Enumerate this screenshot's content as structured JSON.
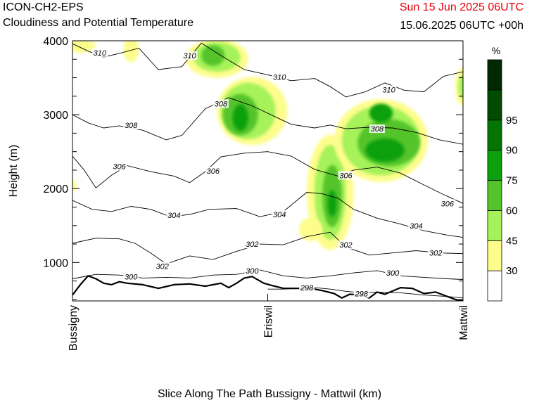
{
  "header": {
    "model": "ICON-CH2-EPS",
    "subtitle": "Cloudiness and Potential Temperature",
    "run_time": "Sun 15 Jun 2025 06UTC",
    "valid_time": "15.06.2025 06UTC +00h"
  },
  "colors": {
    "run_time": "#e8000b",
    "cloud_levels": [
      "#ffffff",
      "#fdfd8c",
      "#a6f25a",
      "#54c42b",
      "#0da00d",
      "#037503",
      "#024c02",
      "#022902"
    ]
  },
  "chart_data": {
    "type": "area",
    "title": "Cloudiness and Potential Temperature",
    "xlabel": "Slice Along The Path Bussigny - Mattwil (km)",
    "ylabel": "Height (m)",
    "x_ticks": [
      "Bussigny",
      "Eriswil",
      "Mattwil"
    ],
    "ylim": [
      480,
      4000
    ],
    "y_ticks": [
      1000,
      2000,
      3000,
      4000
    ],
    "legend": {
      "unit": "%",
      "position": "right",
      "levels": [
        30,
        45,
        60,
        75,
        90,
        95
      ]
    },
    "contour_labels": [
      {
        "label": "310",
        "x": 0.07,
        "y": 3840
      },
      {
        "label": "310",
        "x": 0.3,
        "y": 3800
      },
      {
        "label": "310",
        "x": 0.53,
        "y": 3510
      },
      {
        "label": "310",
        "x": 0.81,
        "y": 3340
      },
      {
        "label": "308",
        "x": 0.38,
        "y": 3150
      },
      {
        "label": "308",
        "x": 0.15,
        "y": 2860
      },
      {
        "label": "308",
        "x": 0.78,
        "y": 2810
      },
      {
        "label": "306",
        "x": 0.12,
        "y": 2300
      },
      {
        "label": "306",
        "x": 0.36,
        "y": 2240
      },
      {
        "label": "306",
        "x": 0.7,
        "y": 2180
      },
      {
        "label": "306",
        "x": 0.96,
        "y": 1800
      },
      {
        "label": "304",
        "x": 0.26,
        "y": 1640
      },
      {
        "label": "304",
        "x": 0.53,
        "y": 1650
      },
      {
        "label": "304",
        "x": 0.88,
        "y": 1500
      },
      {
        "label": "302",
        "x": 0.46,
        "y": 1250
      },
      {
        "label": "302",
        "x": 0.23,
        "y": 950
      },
      {
        "label": "302",
        "x": 0.7,
        "y": 1240
      },
      {
        "label": "302",
        "x": 0.93,
        "y": 1130
      },
      {
        "label": "300",
        "x": 0.15,
        "y": 810
      },
      {
        "label": "300",
        "x": 0.46,
        "y": 890
      },
      {
        "label": "300",
        "x": 0.82,
        "y": 860
      },
      {
        "label": "298",
        "x": 0.6,
        "y": 660
      },
      {
        "label": "298",
        "x": 0.74,
        "y": 580
      }
    ],
    "series": [
      {
        "name": "310",
        "x": [
          0.0,
          0.04,
          0.08,
          0.12,
          0.17,
          0.22,
          0.28,
          0.33,
          0.38,
          0.44,
          0.5,
          0.56,
          0.62,
          0.66,
          0.7,
          0.75,
          0.8,
          0.85,
          0.9,
          0.95,
          1.0
        ],
        "y": [
          3960,
          3860,
          3780,
          3830,
          3900,
          3610,
          3650,
          3970,
          3800,
          3610,
          3540,
          3460,
          3490,
          3380,
          3240,
          3310,
          3430,
          3330,
          3310,
          3520,
          3580
        ]
      },
      {
        "name": "308",
        "x": [
          0.0,
          0.04,
          0.08,
          0.12,
          0.18,
          0.24,
          0.28,
          0.34,
          0.4,
          0.46,
          0.52,
          0.56,
          0.62,
          0.66,
          0.7,
          0.76,
          0.82,
          0.88,
          0.94,
          1.0
        ],
        "y": [
          3000,
          2890,
          2820,
          2850,
          2790,
          2660,
          2720,
          3080,
          3230,
          3120,
          2970,
          2870,
          2820,
          2860,
          2810,
          2830,
          2820,
          2760,
          2660,
          2600
        ]
      },
      {
        "name": "306",
        "x": [
          0.0,
          0.03,
          0.06,
          0.1,
          0.14,
          0.2,
          0.26,
          0.3,
          0.34,
          0.38,
          0.44,
          0.5,
          0.56,
          0.62,
          0.68,
          0.72,
          0.78,
          0.84,
          0.9,
          0.95,
          1.0
        ],
        "y": [
          2440,
          2250,
          2010,
          2180,
          2310,
          2230,
          2170,
          2080,
          2230,
          2430,
          2480,
          2500,
          2440,
          2260,
          2170,
          2250,
          2290,
          2210,
          2050,
          1920,
          1800
        ]
      },
      {
        "name": "304",
        "x": [
          0.0,
          0.05,
          0.1,
          0.15,
          0.2,
          0.25,
          0.3,
          0.35,
          0.42,
          0.48,
          0.54,
          0.6,
          0.64,
          0.68,
          0.72,
          0.78,
          0.84,
          0.9,
          0.96,
          1.0
        ],
        "y": [
          1840,
          1720,
          1690,
          1760,
          1720,
          1620,
          1650,
          1720,
          1730,
          1620,
          1690,
          1950,
          1930,
          1870,
          1720,
          1600,
          1520,
          1430,
          1370,
          1340
        ]
      },
      {
        "name": "302",
        "x": [
          0.0,
          0.06,
          0.12,
          0.16,
          0.2,
          0.24,
          0.3,
          0.36,
          0.42,
          0.48,
          0.54,
          0.6,
          0.66,
          0.7,
          0.76,
          0.82,
          0.88,
          0.94,
          1.0
        ],
        "y": [
          1260,
          1330,
          1320,
          1260,
          1130,
          980,
          1090,
          1040,
          1150,
          1250,
          1240,
          1350,
          1410,
          1210,
          1100,
          1130,
          1160,
          1130,
          1120
        ]
      },
      {
        "name": "300",
        "x": [
          0.0,
          0.06,
          0.12,
          0.18,
          0.24,
          0.3,
          0.36,
          0.42,
          0.48,
          0.54,
          0.6,
          0.66,
          0.72,
          0.78,
          0.84,
          0.9,
          0.96,
          1.0
        ],
        "y": [
          780,
          840,
          830,
          790,
          800,
          790,
          830,
          840,
          900,
          820,
          790,
          820,
          860,
          890,
          820,
          800,
          780,
          770
        ]
      },
      {
        "name": "298",
        "x": [
          0.5,
          0.54,
          0.58,
          0.62,
          0.66,
          0.7,
          0.74,
          0.78,
          0.84,
          0.9,
          0.96,
          1.0
        ],
        "y": [
          640,
          640,
          650,
          660,
          640,
          610,
          590,
          600,
          590,
          560,
          540,
          520
        ]
      },
      {
        "name": "terrain",
        "x": [
          0.0,
          0.02,
          0.04,
          0.06,
          0.08,
          0.1,
          0.12,
          0.14,
          0.18,
          0.22,
          0.26,
          0.3,
          0.34,
          0.38,
          0.4,
          0.42,
          0.44,
          0.46,
          0.49,
          0.51,
          0.54,
          0.58,
          0.62,
          0.64,
          0.67,
          0.69,
          0.71,
          0.74,
          0.76,
          0.78,
          0.8,
          0.84,
          0.87,
          0.9,
          0.93,
          0.96,
          0.98,
          1.0
        ],
        "y": [
          560,
          700,
          820,
          780,
          720,
          700,
          740,
          720,
          700,
          650,
          700,
          710,
          680,
          720,
          660,
          720,
          790,
          810,
          720,
          690,
          650,
          650,
          640,
          620,
          580,
          520,
          570,
          560,
          520,
          600,
          570,
          660,
          650,
          580,
          600,
          540,
          500,
          480
        ]
      }
    ],
    "cloud_blobs": [
      {
        "level": 30,
        "x": 0.02,
        "y": 3930,
        "rx": 0.04,
        "ry": 90
      },
      {
        "level": 30,
        "x": 0.15,
        "y": 3880,
        "rx": 0.02,
        "ry": 170
      },
      {
        "level": 30,
        "x": 0.37,
        "y": 3760,
        "rx": 0.08,
        "ry": 260
      },
      {
        "level": 45,
        "x": 0.37,
        "y": 3780,
        "rx": 0.06,
        "ry": 200
      },
      {
        "level": 60,
        "x": 0.36,
        "y": 3800,
        "rx": 0.03,
        "ry": 140
      },
      {
        "level": 30,
        "x": 0.46,
        "y": 3050,
        "rx": 0.09,
        "ry": 460
      },
      {
        "level": 45,
        "x": 0.45,
        "y": 3050,
        "rx": 0.07,
        "ry": 380
      },
      {
        "level": 60,
        "x": 0.43,
        "y": 3000,
        "rx": 0.045,
        "ry": 280
      },
      {
        "level": 75,
        "x": 0.43,
        "y": 2960,
        "rx": 0.02,
        "ry": 180
      },
      {
        "level": 30,
        "x": 0.66,
        "y": 1950,
        "rx": 0.06,
        "ry": 780
      },
      {
        "level": 45,
        "x": 0.66,
        "y": 1950,
        "rx": 0.04,
        "ry": 640
      },
      {
        "level": 60,
        "x": 0.665,
        "y": 1900,
        "rx": 0.025,
        "ry": 420
      },
      {
        "level": 75,
        "x": 0.665,
        "y": 1800,
        "rx": 0.012,
        "ry": 180
      },
      {
        "level": 30,
        "x": 0.61,
        "y": 1450,
        "rx": 0.03,
        "ry": 160
      },
      {
        "level": 30,
        "x": 0.79,
        "y": 2650,
        "rx": 0.12,
        "ry": 560
      },
      {
        "level": 45,
        "x": 0.79,
        "y": 2650,
        "rx": 0.1,
        "ry": 470
      },
      {
        "level": 60,
        "x": 0.81,
        "y": 2620,
        "rx": 0.08,
        "ry": 320
      },
      {
        "level": 75,
        "x": 0.8,
        "y": 2520,
        "rx": 0.05,
        "ry": 160
      },
      {
        "level": 75,
        "x": 0.79,
        "y": 3020,
        "rx": 0.03,
        "ry": 130
      },
      {
        "level": 30,
        "x": 1.0,
        "y": 3380,
        "rx": 0.02,
        "ry": 260
      },
      {
        "level": 45,
        "x": 1.0,
        "y": 3380,
        "rx": 0.012,
        "ry": 160
      },
      {
        "level": 30,
        "x": 0.0,
        "y": 2040,
        "rx": 0.01,
        "ry": 80
      }
    ]
  }
}
